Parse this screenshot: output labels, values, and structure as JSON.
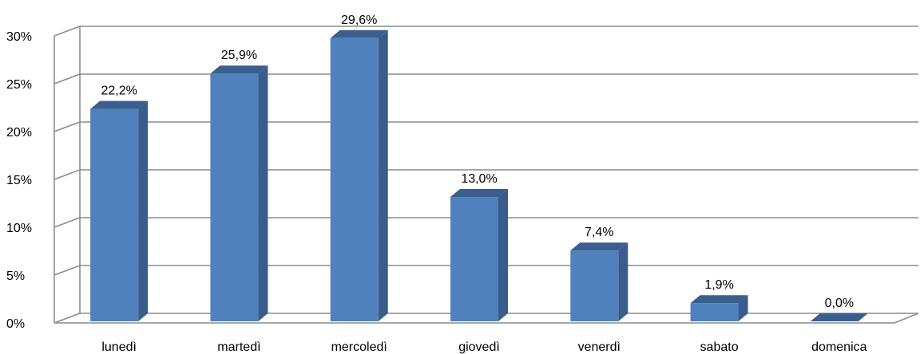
{
  "chart_data": {
    "type": "bar",
    "title": "",
    "xlabel": "",
    "ylabel": "",
    "categories": [
      "lunedì",
      "martedì",
      "mercoledì",
      "giovedì",
      "venerdì",
      "sabato",
      "domenica"
    ],
    "values": [
      22.2,
      25.9,
      29.6,
      13.0,
      7.4,
      1.9,
      0.0
    ],
    "data_labels": [
      "22,2%",
      "25,9%",
      "29,6%",
      "13,0%",
      "7,4%",
      "1,9%",
      "0,0%"
    ],
    "ylim": [
      0,
      30
    ],
    "y_ticks": [
      0,
      5,
      10,
      15,
      20,
      25,
      30
    ],
    "y_tick_labels": [
      "0%",
      "5%",
      "10%",
      "15%",
      "20%",
      "25%",
      "30%"
    ],
    "grid": true,
    "legend": "none",
    "style": "3d-column",
    "colors": {
      "bar_front": "#4f81bd",
      "bar_side": "#385d8a",
      "bar_top": "#3a5f8e",
      "grid": "#8c8c8c"
    }
  }
}
